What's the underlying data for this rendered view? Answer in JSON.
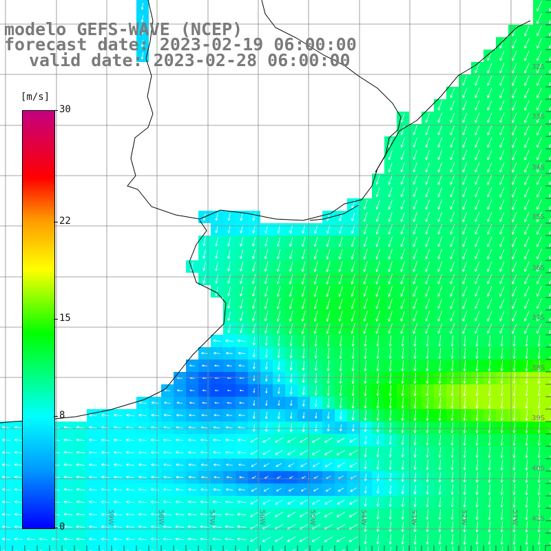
{
  "title": {
    "line1": "modelo GEFS-WAVE (NCEP)",
    "line2": "forecast date: 2023-02-19 06:00:00",
    "line3": "valid date: 2023-02-28 06:00:00"
  },
  "colorbar": {
    "unit": "[m/s]",
    "min": 0,
    "max": 30,
    "ticks": [
      {
        "value": 30,
        "label": "30"
      },
      {
        "value": 22,
        "label": "22"
      },
      {
        "value": 15,
        "label": "15"
      },
      {
        "value": 8,
        "label": "8"
      },
      {
        "value": 0,
        "label": "0"
      }
    ],
    "colors": {
      "0": "#0000ff",
      "4": "#0099ff",
      "8": "#00ffff",
      "14": "#00ff00",
      "18.6": "#ffff00",
      "22": "#ff9900",
      "25": "#ff0000",
      "30": "#c40080"
    }
  },
  "lat_labels": [
    "32S",
    "33S",
    "34S",
    "35S",
    "36S",
    "37S",
    "38S",
    "39S",
    "40S",
    "41S"
  ],
  "lon_labels": [
    "59W",
    "58W",
    "57W",
    "56W",
    "55W",
    "54W",
    "53W",
    "52W",
    "51W"
  ],
  "colors": {
    "land": "#ffffff",
    "grid": "#888888",
    "coast": "#000000",
    "arrow": "#ffffff",
    "title": "#7a7a7a"
  },
  "wind_field": {
    "source_model": "GEFS-WAVE",
    "description_fields": [
      "speed (m/s)",
      "direction arrows"
    ],
    "regions": [
      {
        "name": "northeast-coast",
        "speed": 9
      },
      {
        "name": "offshore-east",
        "speed": 12
      },
      {
        "name": "band-38-39S",
        "speed": 15
      },
      {
        "name": "near-coast-south",
        "speed": 3
      },
      {
        "name": "southern-jet",
        "speed": 2
      }
    ]
  }
}
